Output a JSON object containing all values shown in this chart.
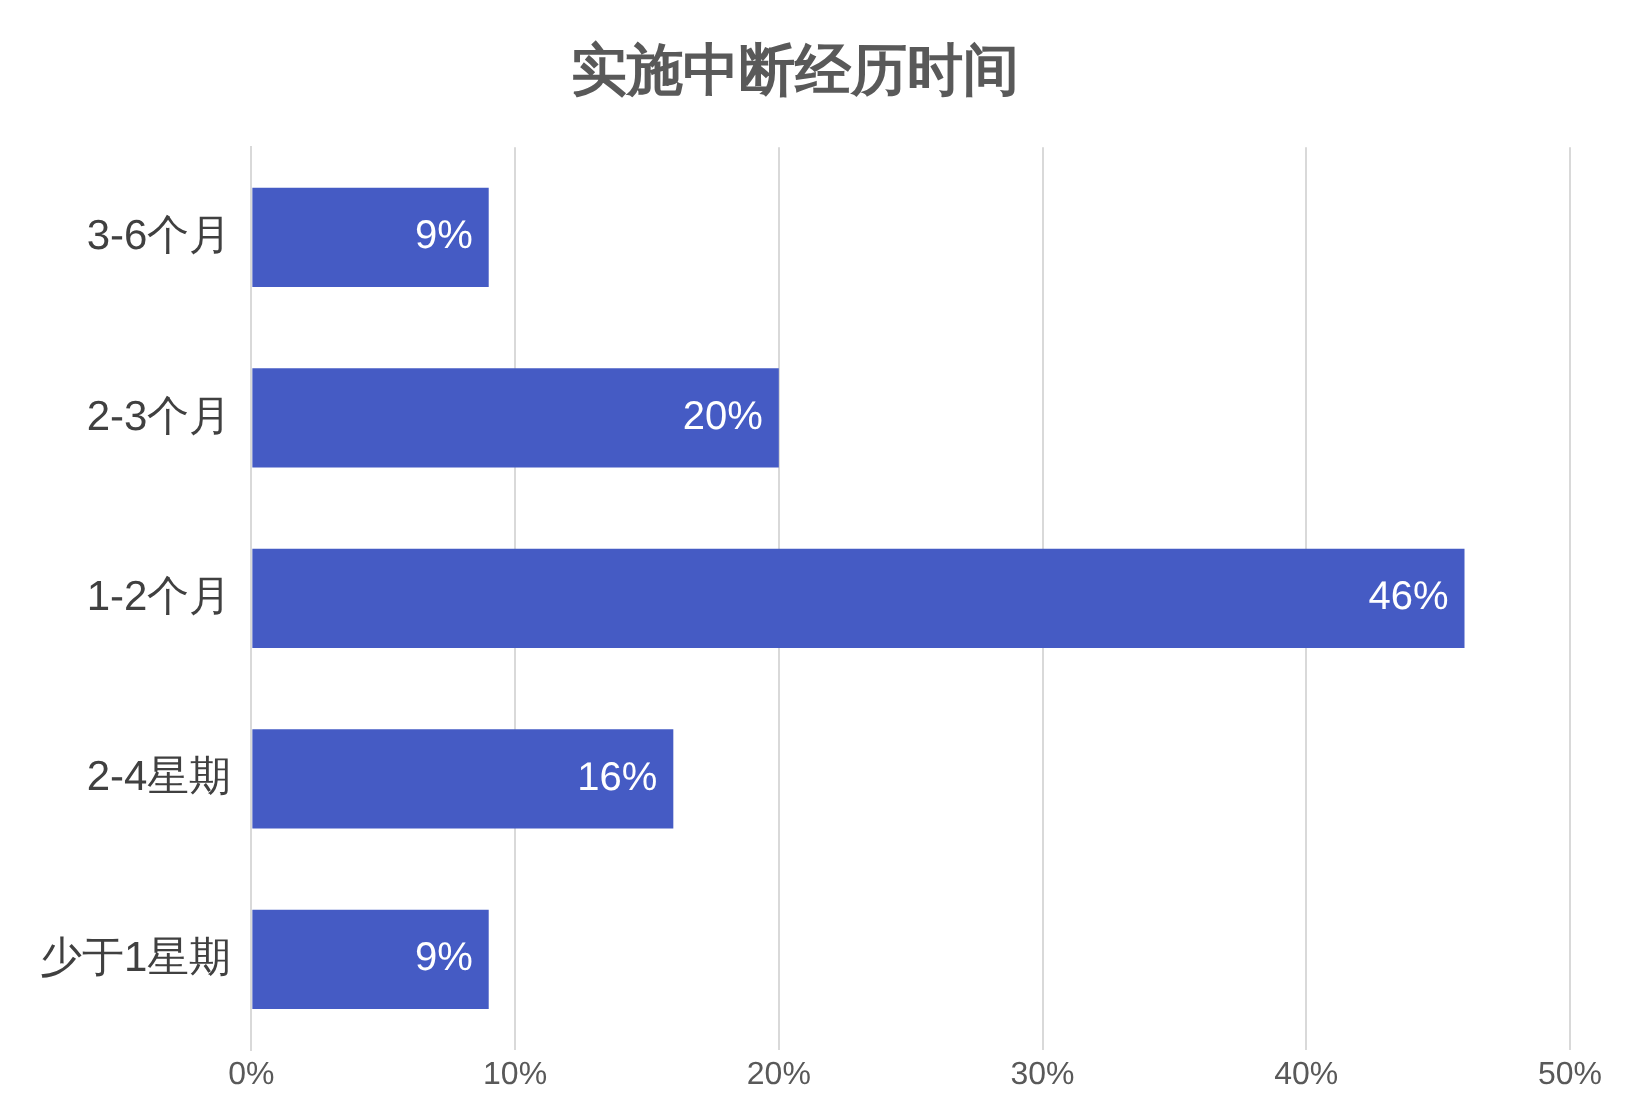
{
  "chart_data": {
    "type": "bar",
    "orientation": "horizontal",
    "title": "实施中断经历时间",
    "categories": [
      "3-6个月",
      "2-3个月",
      "1-2个月",
      "2-4星期",
      "少于1星期"
    ],
    "values": [
      9,
      20,
      46,
      16,
      9
    ],
    "color": "#455bc4",
    "xlim": [
      0,
      50
    ],
    "xticks": [
      {
        "value": 0,
        "label": "0%"
      },
      {
        "value": 10,
        "label": "10%"
      },
      {
        "value": 20,
        "label": "20%"
      },
      {
        "value": 30,
        "label": "30%"
      },
      {
        "value": 40,
        "label": "40%"
      },
      {
        "value": 50,
        "label": "50%"
      }
    ],
    "grid": "x",
    "legend": false,
    "data_labels": true,
    "value_labels": [
      "9%",
      "20%",
      "46%",
      "16%",
      "9%"
    ]
  }
}
